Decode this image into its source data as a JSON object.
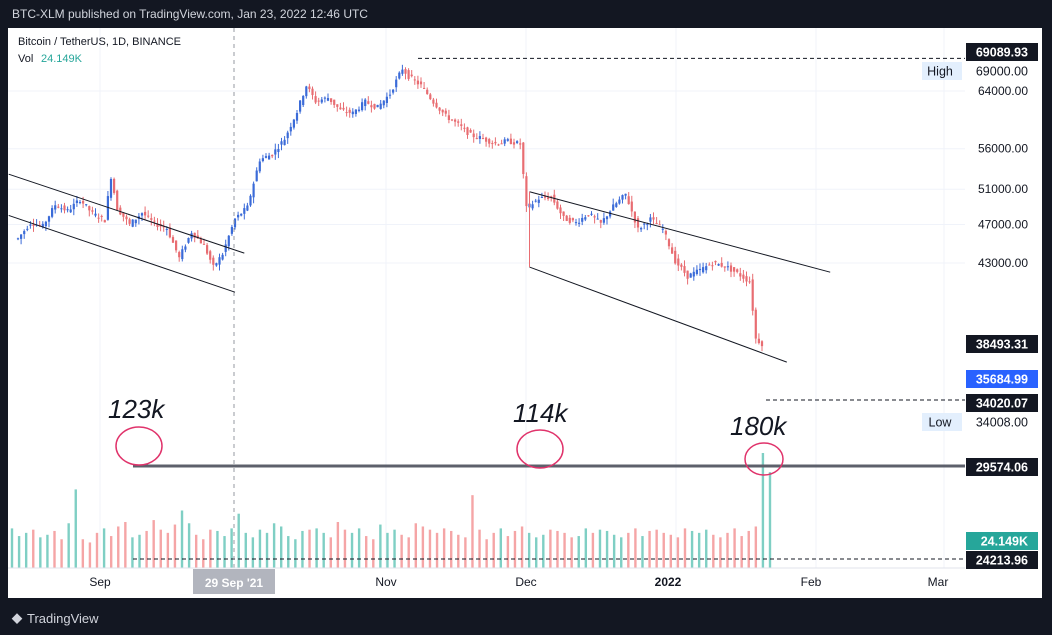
{
  "header": {
    "publish_line": "BTC-XLM published on TradingView.com, Jan 23, 2022 12:46 UTC"
  },
  "footer": {
    "brand": "TradingView"
  },
  "legend": {
    "symbol": "Bitcoin / TetherUS, 1D, BINANCE",
    "vol_label": "Vol",
    "vol_value": "24.149K"
  },
  "chart_data": {
    "type": "candlestick",
    "title": "Bitcoin / TetherUS, 1D, BINANCE",
    "y_axis_ticks": [
      "64000.00",
      "56000.00",
      "51000.00",
      "47000.00",
      "43000.00"
    ],
    "y_tick_values": [
      64000,
      56000,
      51000,
      47000,
      43000
    ],
    "x_axis_ticks": [
      "Sep",
      "Nov",
      "Dec",
      "2022",
      "Feb",
      "Mar"
    ],
    "crosshair_date": "29 Sep '21",
    "price_labels": [
      {
        "label": "69089.93",
        "value": 69089.93,
        "style": "dark"
      },
      {
        "label": "69000.00",
        "value": 69000.0,
        "style": "light",
        "tag": "High"
      },
      {
        "label": "38493.31",
        "value": 38493.31,
        "style": "dark"
      },
      {
        "label": "35684.99",
        "value": 35684.99,
        "style": "blue"
      },
      {
        "label": "34020.07",
        "value": 34020.07,
        "style": "dark"
      },
      {
        "label": "34008.00",
        "value": 34008.0,
        "style": "light",
        "tag": "Low"
      },
      {
        "label": "29574.06",
        "value": 29574.06,
        "style": "dark"
      },
      {
        "label": "24.149K",
        "value": 24149,
        "style": "teal"
      },
      {
        "label": "24213.96",
        "value": 24213.96,
        "style": "dark"
      }
    ],
    "annotations": [
      {
        "text": "123k",
        "day": 9
      },
      {
        "text": "114k",
        "day": 96
      },
      {
        "text": "180k",
        "day": 144
      }
    ],
    "ohlc_close_path": [
      [
        0,
        45500
      ],
      [
        4,
        47200
      ],
      [
        8,
        46800
      ],
      [
        12,
        49200
      ],
      [
        16,
        48500
      ],
      [
        20,
        49800
      ],
      [
        24,
        48200
      ],
      [
        28,
        47500
      ],
      [
        30,
        52500
      ],
      [
        32,
        48800
      ],
      [
        36,
        47000
      ],
      [
        40,
        48300
      ],
      [
        44,
        47100
      ],
      [
        48,
        46600
      ],
      [
        52,
        43500
      ],
      [
        56,
        46200
      ],
      [
        60,
        44800
      ],
      [
        63,
        42600
      ],
      [
        66,
        43900
      ],
      [
        70,
        47600
      ],
      [
        74,
        48900
      ],
      [
        78,
        54600
      ],
      [
        82,
        55300
      ],
      [
        86,
        57300
      ],
      [
        90,
        61000
      ],
      [
        93,
        64800
      ],
      [
        96,
        62500
      ],
      [
        100,
        63000
      ],
      [
        104,
        61200
      ],
      [
        108,
        60800
      ],
      [
        112,
        62400
      ],
      [
        116,
        61600
      ],
      [
        120,
        63600
      ],
      [
        124,
        67400
      ],
      [
        126,
        66200
      ],
      [
        130,
        64800
      ],
      [
        134,
        62400
      ],
      [
        138,
        60400
      ],
      [
        142,
        59200
      ],
      [
        146,
        57800
      ],
      [
        150,
        57300
      ],
      [
        154,
        56700
      ],
      [
        158,
        57000
      ],
      [
        162,
        56600
      ],
      [
        164,
        48800
      ],
      [
        168,
        49900
      ],
      [
        172,
        50100
      ],
      [
        176,
        47700
      ],
      [
        180,
        47200
      ],
      [
        184,
        48200
      ],
      [
        188,
        47100
      ],
      [
        192,
        49000
      ],
      [
        196,
        50400
      ],
      [
        200,
        46500
      ],
      [
        204,
        47600
      ],
      [
        208,
        46500
      ],
      [
        212,
        43200
      ],
      [
        216,
        41700
      ],
      [
        220,
        42300
      ],
      [
        224,
        43000
      ],
      [
        228,
        42700
      ],
      [
        232,
        42000
      ],
      [
        236,
        41200
      ],
      [
        238,
        36100
      ],
      [
        240,
        35700
      ]
    ],
    "volumes_k": [
      62,
      50,
      55,
      60,
      48,
      52,
      58,
      45,
      70,
      123,
      45,
      40,
      55,
      62,
      50,
      65,
      72,
      48,
      52,
      58,
      75,
      60,
      55,
      68,
      90,
      70,
      52,
      45,
      60,
      58,
      50,
      62,
      85,
      55,
      48,
      60,
      55,
      70,
      65,
      50,
      45,
      58,
      60,
      62,
      55,
      48,
      72,
      60,
      55,
      62,
      50,
      45,
      68,
      55,
      60,
      52,
      48,
      70,
      65,
      60,
      55,
      62,
      58,
      52,
      48,
      114,
      60,
      45,
      55,
      62,
      50,
      58,
      65,
      55,
      48,
      52,
      60,
      58,
      55,
      48,
      50,
      62,
      55,
      60,
      58,
      52,
      48,
      55,
      62,
      50,
      58,
      60,
      55,
      52,
      48,
      62,
      58,
      55,
      60,
      52,
      48,
      55,
      62,
      50,
      58,
      65,
      180,
      150
    ],
    "patterns": [
      {
        "name": "channel-1",
        "upper": [
          [
            -3,
            52800
          ],
          [
            73,
            44000
          ]
        ],
        "lower": [
          [
            -3,
            48000
          ],
          [
            70,
            40200
          ]
        ]
      },
      {
        "name": "channel-2",
        "upper": [
          [
            165,
            50700
          ],
          [
            262,
            42100
          ]
        ],
        "lower": [
          [
            165,
            42600
          ],
          [
            248,
            34200
          ]
        ]
      }
    ],
    "reference_levels": [
      {
        "name": "thick-volume-line",
        "value": 29574.06
      },
      {
        "name": "high-line",
        "value": 69000
      },
      {
        "name": "low-line",
        "value": 34020
      },
      {
        "name": "vol-line",
        "value": 24213.96
      }
    ]
  }
}
